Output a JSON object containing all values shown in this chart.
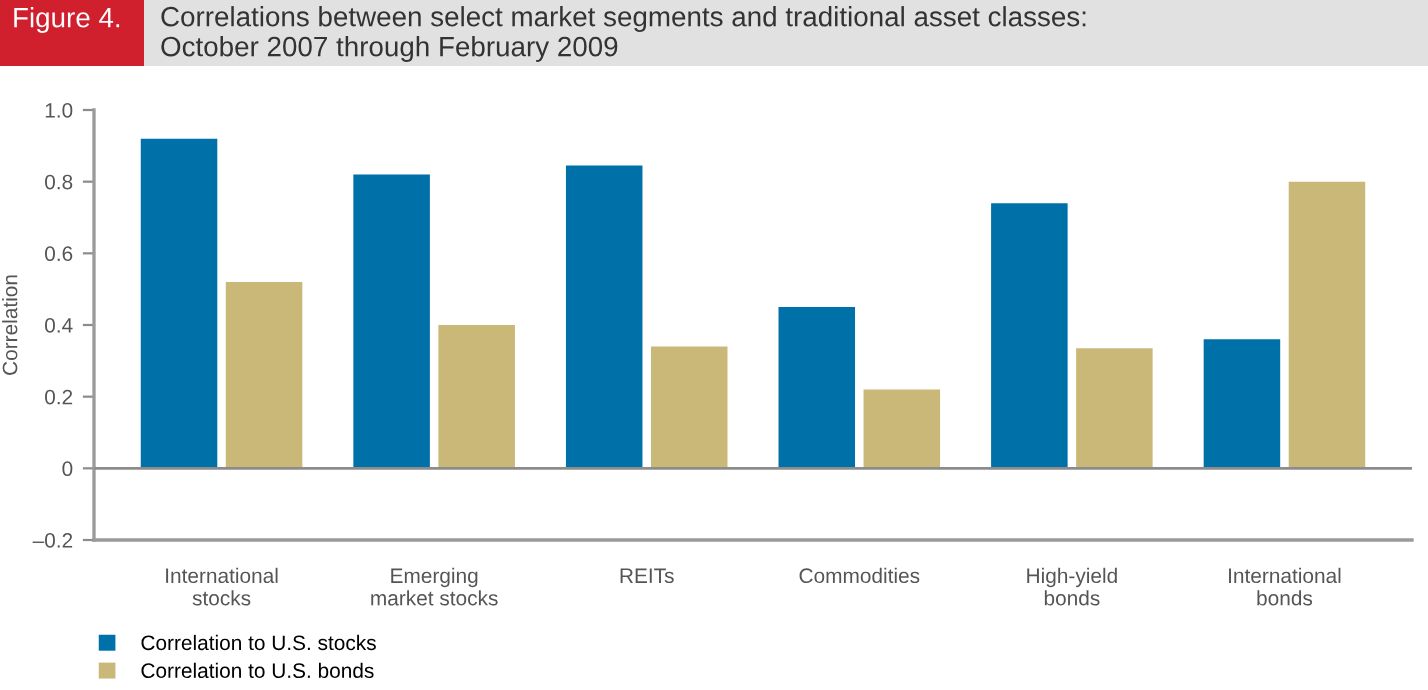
{
  "chart_data": {
    "type": "bar",
    "title": "Correlations between select market segments and traditional asset classes:\nOctober 2007 through February 2009",
    "annotations": [
      "Figure 4."
    ],
    "ylabel": "Correlation",
    "categories": [
      "International\nstocks",
      "Emerging\nmarket stocks",
      "REITs",
      "Commodities",
      "High-yield\nbonds",
      "International\nbonds"
    ],
    "series": [
      {
        "name": "Correlation to U.S. stocks",
        "color": "#0071a8",
        "values": [
          0.92,
          0.82,
          0.845,
          0.45,
          0.74,
          0.36
        ]
      },
      {
        "name": "Correlation to U.S. bonds",
        "color": "#c9b878",
        "values": [
          0.52,
          0.4,
          0.34,
          0.22,
          0.335,
          0.8
        ]
      }
    ],
    "ylim": [
      -0.2,
      1.0
    ],
    "yticks": [
      {
        "value": -0.2,
        "label": "–0.2"
      },
      0,
      0.2,
      0.4,
      0.6,
      0.8,
      {
        "value": 1.0,
        "label": "1.0"
      }
    ],
    "ref_lines": [
      {
        "axis": "y",
        "value": 0,
        "color": "#8c8c8c"
      }
    ],
    "grid": false,
    "legend": "bottom left"
  }
}
